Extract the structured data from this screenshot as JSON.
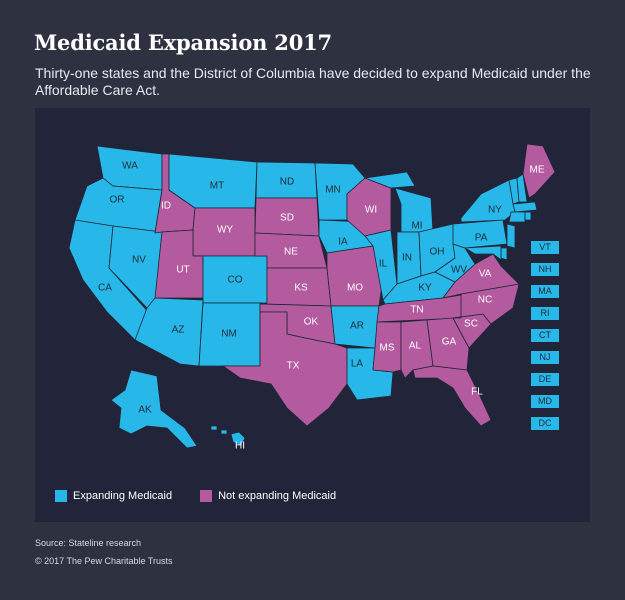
{
  "header": {
    "title": "Medicaid Expansion 2017",
    "subtitle": "Thirty-one states and the District of Columbia have decided to expand Medicaid under the Affordable Care Act."
  },
  "colors": {
    "expanding": "#27b7e8",
    "not_expanding": "#b45a9f",
    "panel": "#22253a",
    "background": "#2e3140"
  },
  "legend": {
    "expanding_label": "Expanding Medicaid",
    "not_expanding_label": "Not expanding Medicaid"
  },
  "states": [
    {
      "abbr": "WA",
      "status": "expanding"
    },
    {
      "abbr": "OR",
      "status": "expanding"
    },
    {
      "abbr": "CA",
      "status": "expanding"
    },
    {
      "abbr": "NV",
      "status": "expanding"
    },
    {
      "abbr": "ID",
      "status": "not_expanding"
    },
    {
      "abbr": "MT",
      "status": "expanding"
    },
    {
      "abbr": "WY",
      "status": "not_expanding"
    },
    {
      "abbr": "UT",
      "status": "not_expanding"
    },
    {
      "abbr": "CO",
      "status": "expanding"
    },
    {
      "abbr": "AZ",
      "status": "expanding"
    },
    {
      "abbr": "NM",
      "status": "expanding"
    },
    {
      "abbr": "ND",
      "status": "expanding"
    },
    {
      "abbr": "SD",
      "status": "not_expanding"
    },
    {
      "abbr": "NE",
      "status": "not_expanding"
    },
    {
      "abbr": "KS",
      "status": "not_expanding"
    },
    {
      "abbr": "OK",
      "status": "not_expanding"
    },
    {
      "abbr": "TX",
      "status": "not_expanding"
    },
    {
      "abbr": "MN",
      "status": "expanding"
    },
    {
      "abbr": "IA",
      "status": "expanding"
    },
    {
      "abbr": "MO",
      "status": "not_expanding"
    },
    {
      "abbr": "AR",
      "status": "expanding"
    },
    {
      "abbr": "LA",
      "status": "expanding"
    },
    {
      "abbr": "WI",
      "status": "not_expanding"
    },
    {
      "abbr": "IL",
      "status": "expanding"
    },
    {
      "abbr": "MI",
      "status": "expanding"
    },
    {
      "abbr": "IN",
      "status": "expanding"
    },
    {
      "abbr": "OH",
      "status": "expanding"
    },
    {
      "abbr": "KY",
      "status": "expanding"
    },
    {
      "abbr": "TN",
      "status": "not_expanding"
    },
    {
      "abbr": "MS",
      "status": "not_expanding"
    },
    {
      "abbr": "AL",
      "status": "not_expanding"
    },
    {
      "abbr": "GA",
      "status": "not_expanding"
    },
    {
      "abbr": "FL",
      "status": "not_expanding"
    },
    {
      "abbr": "SC",
      "status": "not_expanding"
    },
    {
      "abbr": "NC",
      "status": "not_expanding"
    },
    {
      "abbr": "VA",
      "status": "not_expanding"
    },
    {
      "abbr": "WV",
      "status": "expanding"
    },
    {
      "abbr": "PA",
      "status": "expanding"
    },
    {
      "abbr": "NY",
      "status": "expanding"
    },
    {
      "abbr": "ME",
      "status": "not_expanding"
    },
    {
      "abbr": "AK",
      "status": "expanding"
    },
    {
      "abbr": "HI",
      "status": "expanding"
    }
  ],
  "small_states": [
    {
      "abbr": "VT",
      "status": "expanding"
    },
    {
      "abbr": "NH",
      "status": "expanding"
    },
    {
      "abbr": "MA",
      "status": "expanding"
    },
    {
      "abbr": "RI",
      "status": "expanding"
    },
    {
      "abbr": "CT",
      "status": "expanding"
    },
    {
      "abbr": "NJ",
      "status": "expanding"
    },
    {
      "abbr": "DE",
      "status": "expanding"
    },
    {
      "abbr": "MD",
      "status": "expanding"
    },
    {
      "abbr": "DC",
      "status": "expanding"
    }
  ],
  "footer": {
    "source": "Source: Stateline research",
    "copyright": "© 2017 The Pew Charitable Trusts"
  }
}
